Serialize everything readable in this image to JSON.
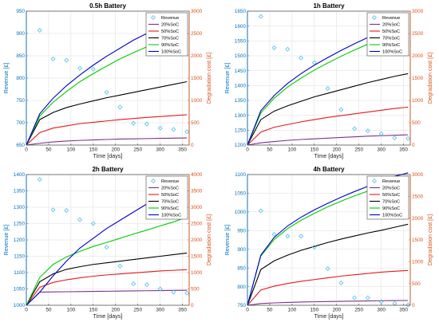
{
  "style": {
    "left_axis_color": "#0072BD",
    "right_axis_color": "#D95319",
    "revenue_marker_color": "#4DBEEE",
    "grid_color": "#dcdcdc"
  },
  "chart_data": [
    {
      "type": "line",
      "title": "0.5h Battery",
      "xlabel": "Time [days]",
      "ylabel_left": "Revenue [£]",
      "ylabel_right": "Degradation cost [£]",
      "xlim": [
        0,
        365
      ],
      "ylim_left": [
        650,
        950
      ],
      "ylim_right": [
        0,
        3000
      ],
      "xticks": [
        0,
        50,
        100,
        150,
        200,
        250,
        300,
        350
      ],
      "yticks_left": [
        650,
        700,
        750,
        800,
        850,
        900,
        950
      ],
      "yticks_right": [
        0,
        500,
        1000,
        1500,
        2000,
        2500,
        3000
      ],
      "grid": true,
      "legend_position": "top-right",
      "legend": [
        "Revenue",
        "20%SoC",
        "50%SoC",
        "70%SoC",
        "90%SoC",
        "100%SoC"
      ],
      "revenue": {
        "x": [
          30,
          60,
          90,
          120,
          150,
          180,
          210,
          240,
          270,
          300,
          330,
          360
        ],
        "y": [
          907,
          843,
          840,
          822,
          820,
          768,
          735,
          699,
          697,
          688,
          685,
          680
        ]
      },
      "series": [
        {
          "name": "20%SoC",
          "color": "#7E2F8E",
          "x": [
            0,
            30,
            60,
            90,
            120,
            150,
            180,
            210,
            240,
            270,
            300,
            330,
            360
          ],
          "y": [
            0,
            40,
            70,
            90,
            105,
            115,
            125,
            135,
            140,
            145,
            150,
            155,
            160
          ]
        },
        {
          "name": "50%SoC",
          "color": "#E31A1C",
          "x": [
            0,
            30,
            60,
            90,
            120,
            150,
            180,
            210,
            240,
            270,
            300,
            330,
            360
          ],
          "y": [
            0,
            280,
            380,
            430,
            480,
            510,
            540,
            570,
            595,
            620,
            640,
            660,
            680
          ]
        },
        {
          "name": "70%SoC",
          "color": "#000000",
          "x": [
            0,
            30,
            60,
            90,
            120,
            150,
            180,
            210,
            240,
            270,
            300,
            330,
            360
          ],
          "y": [
            0,
            570,
            730,
            840,
            920,
            990,
            1060,
            1120,
            1180,
            1240,
            1300,
            1360,
            1420
          ]
        },
        {
          "name": "90%SoC",
          "color": "#00CC00",
          "x": [
            0,
            30,
            60,
            90,
            120,
            150,
            180,
            210,
            240,
            270,
            300,
            330,
            360
          ],
          "y": [
            0,
            650,
            960,
            1200,
            1420,
            1600,
            1770,
            1930,
            2070,
            2200,
            2300,
            2360,
            2400
          ]
        },
        {
          "name": "100%SoC",
          "color": "#0000CC",
          "x": [
            0,
            30,
            60,
            90,
            120,
            150,
            180,
            210,
            240,
            270,
            300,
            330,
            360
          ],
          "y": [
            0,
            700,
            1050,
            1330,
            1570,
            1790,
            1990,
            2170,
            2350,
            2500,
            2600,
            2700,
            2780
          ]
        }
      ]
    },
    {
      "type": "line",
      "title": "1h Battery",
      "xlabel": "Time [days]",
      "ylabel_left": "Revenue [£]",
      "ylabel_right": "Degradation cost [£]",
      "xlim": [
        0,
        365
      ],
      "ylim_left": [
        1200,
        1650
      ],
      "ylim_right": [
        0,
        3000
      ],
      "xticks": [
        0,
        50,
        100,
        150,
        200,
        250,
        300,
        350
      ],
      "yticks_left": [
        1200,
        1250,
        1300,
        1350,
        1400,
        1450,
        1500,
        1550,
        1600,
        1650
      ],
      "yticks_right": [
        0,
        500,
        1000,
        1500,
        2000,
        2500,
        3000
      ],
      "grid": true,
      "legend_position": "top-right",
      "legend": [
        "Revenue",
        "20%SoC",
        "50%SoC",
        "70%SoC",
        "90%SoC",
        "100%SoC"
      ],
      "revenue": {
        "x": [
          30,
          60,
          90,
          120,
          150,
          180,
          210,
          240,
          270,
          300,
          330,
          360
        ],
        "y": [
          1632,
          1527,
          1522,
          1493,
          1477,
          1390,
          1319,
          1255,
          1248,
          1238,
          1224,
          1222
        ]
      },
      "series": [
        {
          "name": "20%SoC",
          "color": "#7E2F8E",
          "x": [
            0,
            30,
            60,
            90,
            120,
            150,
            180,
            210,
            240,
            270,
            300,
            330,
            360
          ],
          "y": [
            0,
            50,
            80,
            105,
            125,
            140,
            155,
            170,
            185,
            200,
            210,
            220,
            230
          ]
        },
        {
          "name": "50%SoC",
          "color": "#E31A1C",
          "x": [
            0,
            30,
            60,
            90,
            120,
            150,
            180,
            210,
            240,
            270,
            300,
            330,
            360
          ],
          "y": [
            0,
            290,
            400,
            460,
            520,
            570,
            620,
            660,
            700,
            740,
            780,
            820,
            850
          ]
        },
        {
          "name": "70%SoC",
          "color": "#000000",
          "x": [
            0,
            30,
            60,
            90,
            120,
            150,
            180,
            210,
            240,
            270,
            300,
            330,
            360
          ],
          "y": [
            0,
            570,
            760,
            880,
            980,
            1080,
            1160,
            1240,
            1320,
            1400,
            1470,
            1540,
            1600
          ]
        },
        {
          "name": "90%SoC",
          "color": "#00CC00",
          "x": [
            0,
            30,
            60,
            90,
            120,
            150,
            180,
            210,
            240,
            270,
            300,
            330,
            360
          ],
          "y": [
            0,
            720,
            1050,
            1300,
            1500,
            1680,
            1840,
            1990,
            2130,
            2260,
            2380,
            2480,
            2540
          ]
        },
        {
          "name": "100%SoC",
          "color": "#0000CC",
          "x": [
            0,
            30,
            60,
            90,
            120,
            150,
            180,
            210,
            240,
            270,
            300,
            330,
            360
          ],
          "y": [
            0,
            770,
            1110,
            1380,
            1600,
            1790,
            1960,
            2120,
            2270,
            2410,
            2540,
            2640,
            2700
          ]
        }
      ]
    },
    {
      "type": "line",
      "title": "2h Battery",
      "xlabel": "Time [days]",
      "ylabel_left": "Revenue [£]",
      "ylabel_right": "Degradation cost [£]",
      "xlim": [
        0,
        365
      ],
      "ylim_left": [
        1000,
        1400
      ],
      "ylim_right": [
        0,
        4000
      ],
      "xticks": [
        0,
        50,
        100,
        150,
        200,
        250,
        300,
        350
      ],
      "yticks_left": [
        1000,
        1050,
        1100,
        1150,
        1200,
        1250,
        1300,
        1350,
        1400
      ],
      "yticks_right": [
        0,
        500,
        1000,
        1500,
        2000,
        2500,
        3000,
        3500,
        4000
      ],
      "grid": true,
      "legend_position": "top-right",
      "legend": [
        "Revenue",
        "20%SoC",
        "50%SoC",
        "70%SoC",
        "90%SoC",
        "100%SoC"
      ],
      "revenue": {
        "x": [
          30,
          60,
          90,
          120,
          150,
          180,
          210,
          240,
          270,
          300,
          330,
          360
        ],
        "y": [
          1385,
          1292,
          1290,
          1262,
          1250,
          1178,
          1120,
          1066,
          1063,
          1050,
          1040,
          1037
        ]
      },
      "series": [
        {
          "name": "20%SoC",
          "color": "#7E2F8E",
          "x": [
            0,
            30,
            60,
            90,
            120,
            150,
            180,
            210,
            240,
            270,
            300,
            330,
            360
          ],
          "y": [
            0,
            400,
            410,
            415,
            420,
            425,
            430,
            435,
            440,
            445,
            450,
            455,
            460
          ]
        },
        {
          "name": "50%SoC",
          "color": "#E31A1C",
          "x": [
            0,
            30,
            60,
            90,
            120,
            150,
            180,
            210,
            240,
            270,
            300,
            330,
            360
          ],
          "y": [
            0,
            550,
            700,
            780,
            840,
            890,
            930,
            960,
            990,
            1020,
            1050,
            1070,
            1090
          ]
        },
        {
          "name": "70%SoC",
          "color": "#000000",
          "x": [
            0,
            30,
            60,
            90,
            120,
            150,
            180,
            210,
            240,
            270,
            300,
            330,
            360
          ],
          "y": [
            0,
            720,
            960,
            1100,
            1180,
            1250,
            1300,
            1350,
            1400,
            1450,
            1500,
            1550,
            1600
          ]
        },
        {
          "name": "90%SoC",
          "color": "#00CC00",
          "x": [
            0,
            30,
            60,
            90,
            120,
            150,
            180,
            210,
            240,
            270,
            300,
            330,
            360
          ],
          "y": [
            0,
            850,
            1250,
            1480,
            1650,
            1800,
            1920,
            2050,
            2180,
            2300,
            2430,
            2550,
            2700
          ]
        },
        {
          "name": "100%SoC",
          "color": "#0000CC",
          "x": [
            0,
            30,
            60,
            90,
            120,
            150,
            180,
            210,
            240,
            270,
            300,
            330,
            360
          ],
          "y": [
            0,
            400,
            900,
            1350,
            1750,
            2050,
            2350,
            2600,
            2850,
            3100,
            3350,
            3600,
            3900
          ]
        }
      ]
    },
    {
      "type": "line",
      "title": "4h Battery",
      "xlabel": "Time [days]",
      "ylabel_left": "Revenue [£]",
      "ylabel_right": "Degradation cost [£]",
      "xlim": [
        0,
        365
      ],
      "ylim_left": [
        750,
        1100
      ],
      "ylim_right": [
        0,
        3000
      ],
      "xticks": [
        0,
        50,
        100,
        150,
        200,
        250,
        300,
        350
      ],
      "yticks_left": [
        750,
        800,
        850,
        900,
        950,
        1000,
        1050,
        1100
      ],
      "yticks_right": [
        0,
        500,
        1000,
        1500,
        2000,
        2500,
        3000
      ],
      "grid": true,
      "legend_position": "top-right",
      "legend": [
        "Revenue",
        "20%SoC",
        "50%SoC",
        "70%SoC",
        "90%SoC",
        "100%SoC"
      ],
      "revenue": {
        "x": [
          30,
          60,
          90,
          120,
          150,
          180,
          210,
          240,
          270,
          300,
          330,
          360
        ],
        "y": [
          1003,
          940,
          935,
          935,
          906,
          848,
          810,
          770,
          770,
          760,
          755,
          751
        ]
      },
      "series": [
        {
          "name": "20%SoC",
          "color": "#7E2F8E",
          "x": [
            0,
            30,
            60,
            90,
            120,
            150,
            180,
            210,
            240,
            270,
            300,
            330,
            360
          ],
          "y": [
            0,
            40,
            55,
            65,
            75,
            80,
            85,
            90,
            95,
            100,
            105,
            108,
            110
          ]
        },
        {
          "name": "50%SoC",
          "color": "#E31A1C",
          "x": [
            0,
            30,
            60,
            90,
            120,
            150,
            180,
            210,
            240,
            270,
            300,
            330,
            360
          ],
          "y": [
            0,
            350,
            440,
            500,
            550,
            590,
            630,
            670,
            700,
            730,
            760,
            780,
            800
          ]
        },
        {
          "name": "70%SoC",
          "color": "#000000",
          "x": [
            0,
            30,
            60,
            90,
            120,
            150,
            180,
            210,
            240,
            270,
            300,
            330,
            360
          ],
          "y": [
            0,
            820,
            1020,
            1150,
            1260,
            1350,
            1440,
            1520,
            1590,
            1660,
            1720,
            1790,
            1860
          ]
        },
        {
          "name": "90%SoC",
          "color": "#00CC00",
          "x": [
            0,
            30,
            60,
            90,
            120,
            150,
            180,
            210,
            240,
            270,
            300,
            330,
            360
          ],
          "y": [
            0,
            1130,
            1510,
            1760,
            1950,
            2110,
            2260,
            2390,
            2510,
            2620,
            2730,
            2830,
            2920
          ]
        },
        {
          "name": "100%SoC",
          "color": "#0000CC",
          "x": [
            0,
            30,
            60,
            90,
            120,
            150,
            180,
            210,
            240,
            270,
            300,
            330,
            360
          ],
          "y": [
            0,
            1150,
            1560,
            1820,
            2020,
            2190,
            2340,
            2480,
            2610,
            2730,
            2850,
            2960,
            3040
          ]
        }
      ]
    }
  ]
}
